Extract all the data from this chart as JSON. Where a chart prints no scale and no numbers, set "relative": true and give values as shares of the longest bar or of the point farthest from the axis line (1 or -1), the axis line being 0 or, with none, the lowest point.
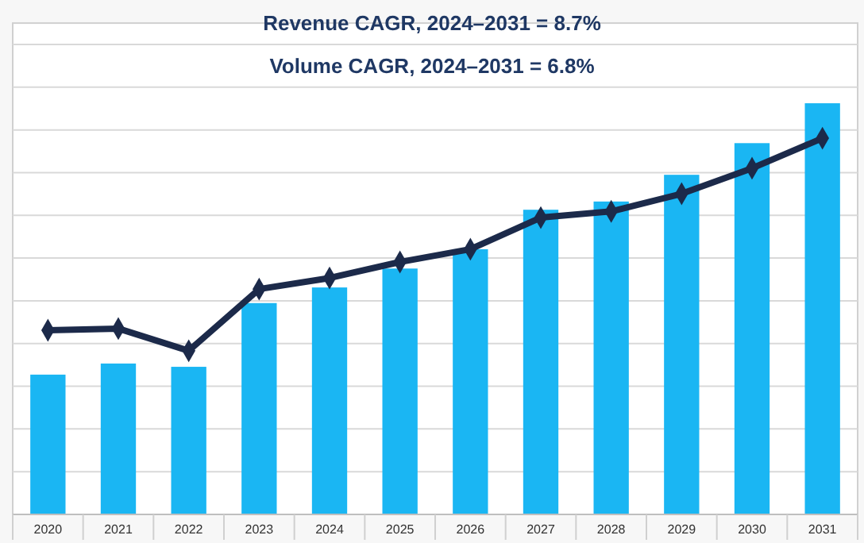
{
  "chart_data": {
    "type": "bar",
    "title": "Revenue CAGR, 2024–2031 = 8.7%",
    "subtitle": "Volume CAGR, 2024–2031 = 6.8%",
    "categories": [
      "2020",
      "2021",
      "2022",
      "2023",
      "2024",
      "2025",
      "2026",
      "2027",
      "2028",
      "2029",
      "2030",
      "2031"
    ],
    "relative": true,
    "grid": "y",
    "series": [
      {
        "color": "#1ab6f3",
        "values": [
          0.34,
          0.367,
          0.359,
          0.514,
          0.552,
          0.598,
          0.645,
          0.741,
          0.761,
          0.826,
          0.903,
          1
        ]
      },
      {
        "type": "line",
        "color": "#1c2a4a",
        "marker": "diamond",
        "values": [
          0.448,
          0.452,
          0.398,
          0.548,
          0.575,
          0.614,
          0.645,
          0.722,
          0.737,
          0.78,
          0.842,
          0.915
        ]
      }
    ]
  }
}
